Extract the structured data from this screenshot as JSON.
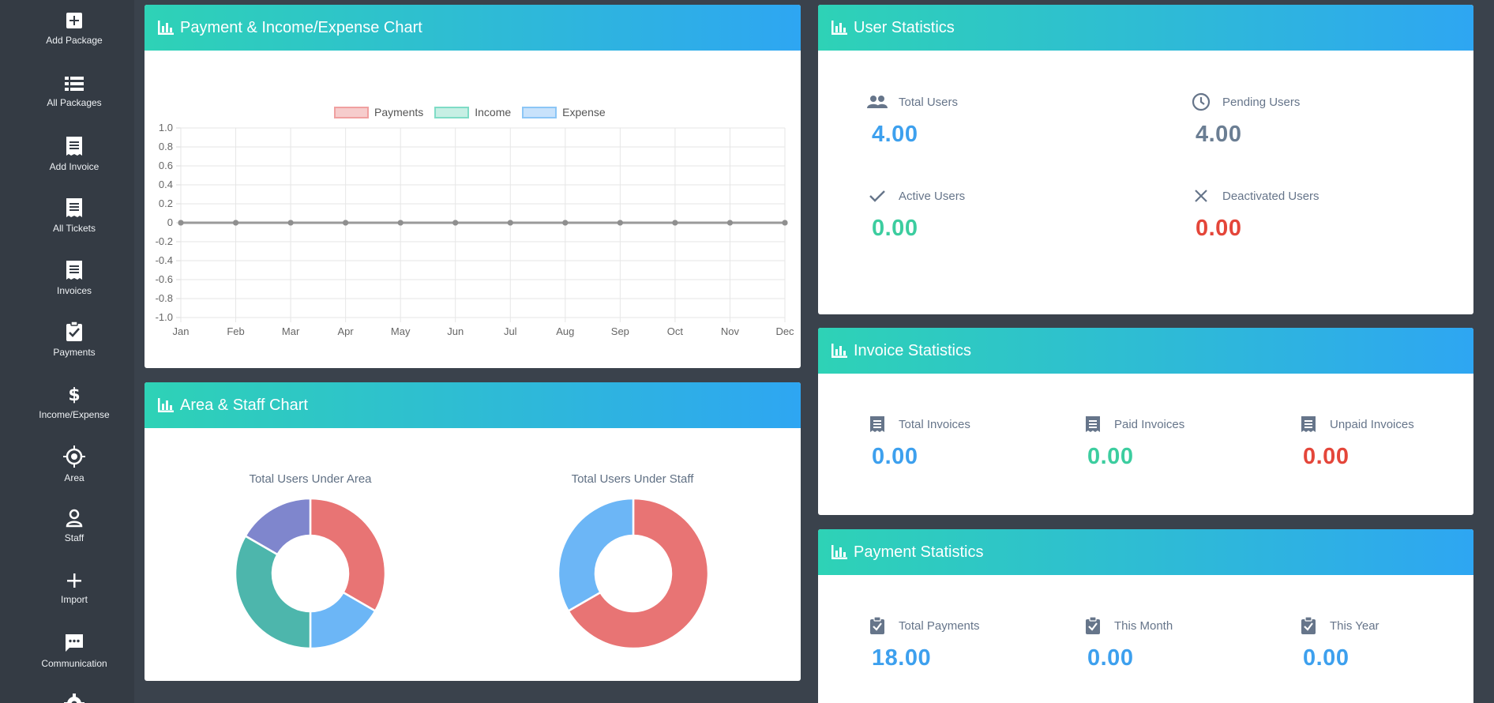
{
  "sidebar": {
    "items": [
      {
        "label": "Add Package",
        "icon": "plus-box-icon"
      },
      {
        "label": "All Packages",
        "icon": "list-icon"
      },
      {
        "label": "Add Invoice",
        "icon": "receipt-icon"
      },
      {
        "label": "All Tickets",
        "icon": "receipt-icon"
      },
      {
        "label": "Invoices",
        "icon": "receipt-icon"
      },
      {
        "label": "Payments",
        "icon": "clipboard-check-icon"
      },
      {
        "label": "Income/Expense",
        "icon": "dollar-icon"
      },
      {
        "label": "Area",
        "icon": "crosshair-icon"
      },
      {
        "label": "Staff",
        "icon": "person-icon"
      },
      {
        "label": "Import",
        "icon": "plus-icon"
      },
      {
        "label": "Communication",
        "icon": "chat-icon"
      },
      {
        "label": "",
        "icon": "gear-icon"
      }
    ]
  },
  "payment_chart": {
    "title": "Payment & Income/Expense Chart"
  },
  "area_staff": {
    "title": "Area & Staff Chart",
    "area_title": "Total Users Under Area",
    "staff_title": "Total Users Under Staff"
  },
  "user_stats": {
    "title": "User Statistics",
    "total_label": "Total Users",
    "total_value": "4.00",
    "pending_label": "Pending Users",
    "pending_value": "4.00",
    "active_label": "Active Users",
    "active_value": "0.00",
    "deactivated_label": "Deactivated Users",
    "deactivated_value": "0.00"
  },
  "invoice_stats": {
    "title": "Invoice Statistics",
    "total_label": "Total Invoices",
    "total_value": "0.00",
    "paid_label": "Paid Invoices",
    "paid_value": "0.00",
    "unpaid_label": "Unpaid Invoices",
    "unpaid_value": "0.00"
  },
  "payment_stats": {
    "title": "Payment Statistics",
    "total_label": "Total Payments",
    "total_value": "18.00",
    "month_label": "This Month",
    "month_value": "0.00",
    "year_label": "This Year",
    "year_value": "0.00"
  },
  "colors": {
    "accent_blue": "#3da0ee",
    "green": "#3ccd9f",
    "red": "#e4463a",
    "header_gradient_start": "#2ed2b6",
    "header_gradient_end": "#2ea6f2"
  },
  "chart_data": [
    {
      "type": "line",
      "categories": [
        "Jan",
        "Feb",
        "Mar",
        "Apr",
        "May",
        "Jun",
        "Jul",
        "Aug",
        "Sep",
        "Oct",
        "Nov",
        "Dec"
      ],
      "series": [
        {
          "name": "Payments",
          "values": [
            0,
            0,
            0,
            0,
            0,
            0,
            0,
            0,
            0,
            0,
            0,
            0
          ],
          "color": "#f0a0a0"
        },
        {
          "name": "Income",
          "values": [
            0,
            0,
            0,
            0,
            0,
            0,
            0,
            0,
            0,
            0,
            0,
            0
          ],
          "color": "#7fdcc6"
        },
        {
          "name": "Expense",
          "values": [
            0,
            0,
            0,
            0,
            0,
            0,
            0,
            0,
            0,
            0,
            0,
            0
          ],
          "color": "#8cc6f6"
        }
      ],
      "y_ticks": [
        "1.0",
        "0.8",
        "0.6",
        "0.4",
        "0.2",
        "0",
        "-0.2",
        "-0.4",
        "-0.6",
        "-0.8",
        "-1.0"
      ],
      "ylim": [
        -1.0,
        1.0
      ],
      "grid": true,
      "legend": "top-center"
    },
    {
      "type": "pie",
      "title": "Total Users Under Area",
      "slices": [
        {
          "value": 2,
          "color": "#e87474"
        },
        {
          "value": 1,
          "color": "#6cb6f6"
        },
        {
          "value": 2,
          "color": "#4db6ac"
        },
        {
          "value": 1,
          "color": "#7f86cd"
        }
      ]
    },
    {
      "type": "pie",
      "title": "Total Users Under Staff",
      "slices": [
        {
          "value": 2,
          "color": "#e87474"
        },
        {
          "value": 1,
          "color": "#6cb6f6"
        }
      ]
    }
  ]
}
